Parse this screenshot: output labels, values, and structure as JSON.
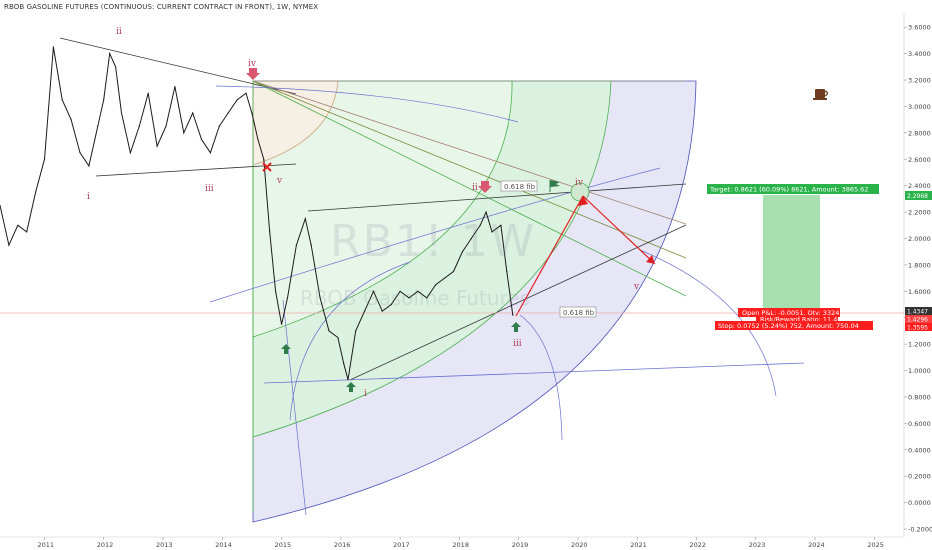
{
  "header": {
    "title": "RBOB GASOLINE FUTURES (CONTINUOUS: CURRENT CONTRACT IN FRONT), 1W, NYMEX"
  },
  "watermark": {
    "symbol": "RB1! 1W",
    "name": "RBOB Gasoline Futures"
  },
  "colors": {
    "price_line": "#1a1a1a",
    "wave_label": "#b03a5b",
    "target_box": "#2bb34b",
    "stop_box": "#ff1e1e",
    "fib_fill": "#d9f2dc",
    "fan_fill": "#e6e6f6"
  },
  "chart_data": {
    "type": "line",
    "title": "RBOB GASOLINE FUTURES (CONTINUOUS: CURRENT CONTRACT IN FRONT), 1W, NYMEX",
    "xlabel": "",
    "ylabel": "",
    "xlim": [
      2010.25,
      2025.5
    ],
    "ylim": [
      -0.2,
      3.7
    ],
    "y_ticks": [
      "-0.2000",
      "0.0000",
      "0.2000",
      "0.4000",
      "0.6000",
      "0.8000",
      "1.0000",
      "1.2000",
      "1.4000",
      "1.6000",
      "1.8000",
      "2.0000",
      "2.2000",
      "2.4000",
      "2.6000",
      "2.8000",
      "3.0000",
      "3.2000",
      "3.4000",
      "3.6000"
    ],
    "x_ticks": [
      "2011",
      "2012",
      "2013",
      "2014",
      "2015",
      "2016",
      "2017",
      "2018",
      "2019",
      "2020",
      "2021",
      "2022",
      "2023",
      "2024",
      "2025"
    ],
    "series": [
      {
        "x": [
          2010.25,
          2010.4,
          2010.55,
          2010.7,
          2010.85,
          2011.0,
          2011.15,
          2011.3,
          2011.45,
          2011.6,
          2011.75,
          2011.9,
          2012.0,
          2012.1,
          2012.2,
          2012.3,
          2012.45,
          2012.6,
          2012.75,
          2012.9,
          2013.05,
          2013.2,
          2013.35,
          2013.5,
          2013.65,
          2013.8,
          2013.95,
          2014.1,
          2014.25,
          2014.4,
          2014.5,
          2014.6,
          2014.7,
          2014.8,
          2014.9,
          2015.0,
          2015.1,
          2015.25,
          2015.4,
          2015.5,
          2015.65,
          2015.8,
          2015.95,
          2016.05,
          2016.12,
          2016.25,
          2016.4,
          2016.55,
          2016.7,
          2016.85,
          2017.0,
          2017.15,
          2017.3,
          2017.45,
          2017.6,
          2017.75,
          2017.9,
          2018.05,
          2018.2,
          2018.35,
          2018.45,
          2018.55,
          2018.7,
          2018.8,
          2018.9
        ],
        "values": [
          2.25,
          1.95,
          2.1,
          2.05,
          2.35,
          2.6,
          3.45,
          3.05,
          2.9,
          2.65,
          2.55,
          2.85,
          3.05,
          3.4,
          3.3,
          2.95,
          2.65,
          2.85,
          3.1,
          2.7,
          2.85,
          3.15,
          2.8,
          2.95,
          2.75,
          2.65,
          2.85,
          2.95,
          3.05,
          3.1,
          2.95,
          2.75,
          2.6,
          2.05,
          1.6,
          1.35,
          1.55,
          1.95,
          2.15,
          1.95,
          1.55,
          1.3,
          1.25,
          1.05,
          0.93,
          1.3,
          1.45,
          1.6,
          1.45,
          1.5,
          1.6,
          1.55,
          1.6,
          1.55,
          1.65,
          1.7,
          1.75,
          1.9,
          2.0,
          2.1,
          2.2,
          2.05,
          2.1,
          1.75,
          1.42
        ]
      }
    ],
    "current_price": "1.4347",
    "annotations": {
      "waves_top": [
        "i",
        "ii",
        "iii",
        "iv",
        "v"
      ],
      "waves_bottom": [
        "i",
        "ii",
        "iii",
        "iv",
        "v"
      ],
      "fib_labels": [
        "0.618 fib",
        "0.618 fib"
      ]
    }
  },
  "trade": {
    "target": "Target: 0.8621 (60.09%) 8621, Amount: 3865.62",
    "target_price": "2.2968",
    "open_pl": "Open P&L: -0.0051, Qty: 3324",
    "risk_reward": "Risk/Reward Ratio: 11.46",
    "stop": "Stop: 0.0752 (5.24%) 752, Amount: 750.04",
    "entry_price": "1.4296",
    "stop_price": "1.3595"
  },
  "price_axis": {
    "current": "1.4347"
  },
  "icons": [
    "coffee-cup-icon",
    "flag-icon",
    "arrow-down-marker",
    "arrow-up-marker",
    "cross-marker"
  ]
}
